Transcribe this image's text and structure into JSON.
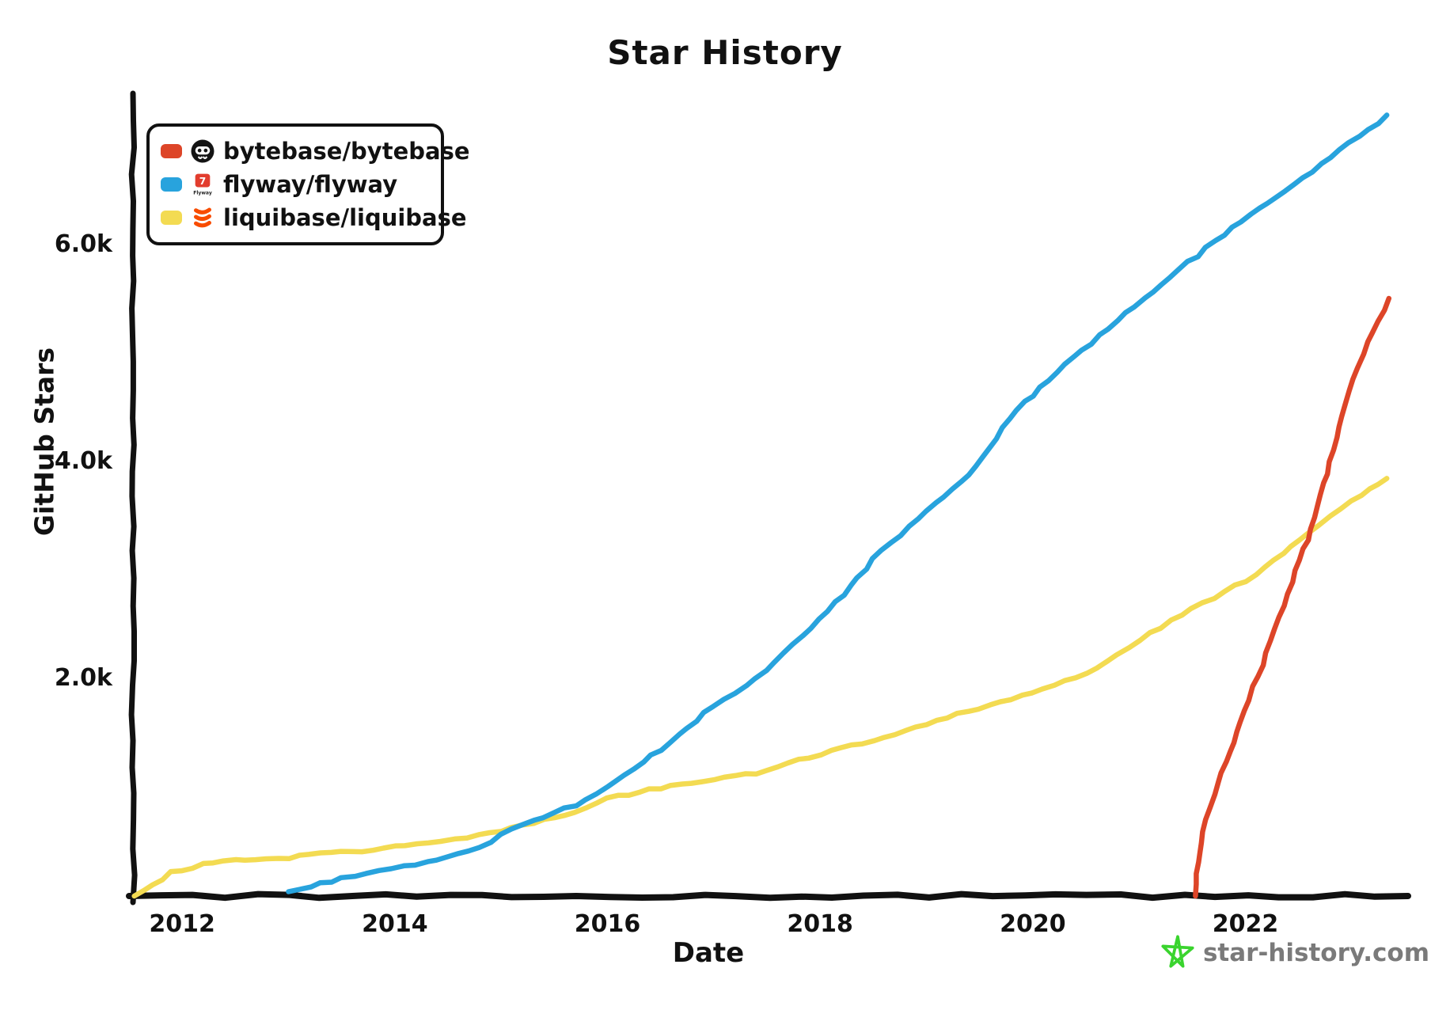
{
  "title": "Star History",
  "axes": {
    "xlabel": "Date",
    "ylabel": "GitHub Stars"
  },
  "watermark": {
    "text": "star-history.com",
    "star_color": "#3ad42e",
    "text_color": "#7a7a7a"
  },
  "legend": {
    "items": [
      {
        "label": "bytebase/bytebase",
        "color": "#dd4528",
        "icon": "bytebase-logo"
      },
      {
        "label": "flyway/flyway",
        "color": "#28a3dd",
        "icon": "flyway-logo"
      },
      {
        "label": "liquibase/liquibase",
        "color": "#f3db52",
        "icon": "liquibase-logo"
      }
    ]
  },
  "style": {
    "axis_color": "#111111",
    "background": "#ffffff"
  },
  "chart_data": {
    "type": "line",
    "title": "Star History",
    "xlabel": "Date",
    "ylabel": "GitHub Stars",
    "grid": false,
    "legend_position": "top-left",
    "x_axis": {
      "min": 2011.5,
      "max": 2023.5,
      "ticks": [
        {
          "value": 2012,
          "label": "2012"
        },
        {
          "value": 2014,
          "label": "2014"
        },
        {
          "value": 2016,
          "label": "2016"
        },
        {
          "value": 2018,
          "label": "2018"
        },
        {
          "value": 2020,
          "label": "2020"
        },
        {
          "value": 2022,
          "label": "2022"
        }
      ]
    },
    "y_axis": {
      "min": 0,
      "max": 7400,
      "ticks": [
        {
          "value": 2000,
          "label": "2.0k"
        },
        {
          "value": 4000,
          "label": "4.0k"
        },
        {
          "value": 6000,
          "label": "6.0k"
        }
      ]
    },
    "series": [
      {
        "name": "liquibase/liquibase",
        "color": "#f3db52",
        "points": [
          [
            2011.55,
            0
          ],
          [
            2011.9,
            215
          ],
          [
            2012.2,
            290
          ],
          [
            2012.5,
            330
          ],
          [
            2012.9,
            345
          ],
          [
            2013.3,
            385
          ],
          [
            2013.7,
            415
          ],
          [
            2014.2,
            480
          ],
          [
            2014.8,
            560
          ],
          [
            2015.1,
            620
          ],
          [
            2015.7,
            780
          ],
          [
            2016.0,
            900
          ],
          [
            2016.5,
            1000
          ],
          [
            2017.0,
            1080
          ],
          [
            2017.4,
            1130
          ],
          [
            2018.0,
            1310
          ],
          [
            2018.5,
            1440
          ],
          [
            2019.0,
            1590
          ],
          [
            2019.5,
            1730
          ],
          [
            2020.0,
            1870
          ],
          [
            2020.5,
            2050
          ],
          [
            2021.1,
            2420
          ],
          [
            2021.5,
            2650
          ],
          [
            2022.1,
            2960
          ],
          [
            2022.6,
            3350
          ],
          [
            2023.0,
            3640
          ],
          [
            2023.33,
            3850
          ]
        ]
      },
      {
        "name": "flyway/flyway",
        "color": "#28a3dd",
        "points": [
          [
            2013.0,
            40
          ],
          [
            2013.5,
            160
          ],
          [
            2014.2,
            290
          ],
          [
            2014.8,
            450
          ],
          [
            2015.1,
            620
          ],
          [
            2015.7,
            840
          ],
          [
            2016.0,
            1000
          ],
          [
            2016.5,
            1350
          ],
          [
            2017.0,
            1750
          ],
          [
            2017.4,
            2010
          ],
          [
            2018.0,
            2550
          ],
          [
            2018.5,
            3100
          ],
          [
            2019.0,
            3550
          ],
          [
            2019.4,
            3880
          ],
          [
            2019.85,
            4480
          ],
          [
            2020.3,
            4900
          ],
          [
            2020.8,
            5300
          ],
          [
            2021.3,
            5710
          ],
          [
            2021.8,
            6100
          ],
          [
            2022.3,
            6450
          ],
          [
            2022.8,
            6800
          ],
          [
            2023.33,
            7200
          ]
        ]
      },
      {
        "name": "bytebase/bytebase",
        "color": "#dd4528",
        "points": [
          [
            2021.53,
            0
          ],
          [
            2021.57,
            400
          ],
          [
            2021.62,
            700
          ],
          [
            2021.75,
            1050
          ],
          [
            2021.85,
            1330
          ],
          [
            2022.0,
            1700
          ],
          [
            2022.2,
            2250
          ],
          [
            2022.4,
            2790
          ],
          [
            2022.62,
            3390
          ],
          [
            2022.8,
            4000
          ],
          [
            2023.0,
            4760
          ],
          [
            2023.15,
            5100
          ],
          [
            2023.25,
            5300
          ],
          [
            2023.35,
            5510
          ]
        ]
      }
    ]
  }
}
